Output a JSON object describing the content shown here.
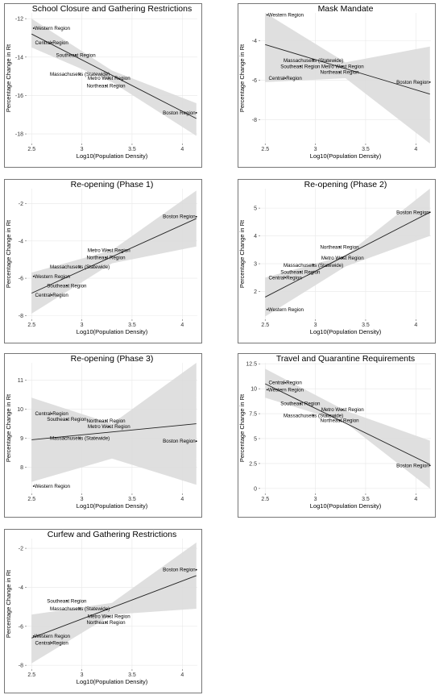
{
  "chart_data": [
    {
      "type": "scatter",
      "title": "School Closure and Gathering Restrictions",
      "xlabel": "Log10(Population Density)",
      "ylabel": "Percentage Change in Rt",
      "xlim": [
        2.45,
        4.15
      ],
      "ylim": [
        -18.5,
        -11.7
      ],
      "xticks": [
        2.5,
        3.0,
        3.5,
        4.0
      ],
      "yticks": [
        -18,
        -16,
        -14,
        -12
      ],
      "points": [
        {
          "label": "Western Region",
          "x": 2.52,
          "y": -12.5
        },
        {
          "label": "Central Region",
          "x": 2.7,
          "y": -13.25
        },
        {
          "label": "Southeast Region",
          "x": 2.94,
          "y": -13.9
        },
        {
          "label": "Massachusetts (Statewide)",
          "x": 2.98,
          "y": -14.9
        },
        {
          "label": "Metro West Region",
          "x": 3.27,
          "y": -15.1
        },
        {
          "label": "Northeast Region",
          "x": 3.24,
          "y": -15.5
        },
        {
          "label": "Boston Region",
          "x": 4.14,
          "y": -16.9
        }
      ],
      "fit": {
        "x": [
          2.5,
          4.14
        ],
        "y": [
          -12.8,
          -17.2
        ]
      },
      "band": {
        "x": [
          2.5,
          3.3,
          4.14
        ],
        "upper": [
          -12.0,
          -14.7,
          -16.4
        ],
        "lower": [
          -13.5,
          -15.3,
          -18.1
        ]
      }
    },
    {
      "type": "scatter",
      "title": "Mask Mandate",
      "xlabel": "Log10(Population Density)",
      "ylabel": "Percentage Change in Rt",
      "xlim": [
        2.45,
        4.15
      ],
      "ylim": [
        -9.2,
        -2.6
      ],
      "xticks": [
        2.5,
        3.0,
        3.5,
        4.0
      ],
      "yticks": [
        -8,
        -6,
        -4
      ],
      "points": [
        {
          "label": "Western Region",
          "x": 2.52,
          "y": -2.7
        },
        {
          "label": "Massachusetts (Statewide)",
          "x": 2.98,
          "y": -5.0
        },
        {
          "label": "Southeast Region",
          "x": 2.85,
          "y": -5.3
        },
        {
          "label": "Metro West Region",
          "x": 3.27,
          "y": -5.3
        },
        {
          "label": "Northeast Region",
          "x": 3.24,
          "y": -5.6
        },
        {
          "label": "Central Region",
          "x": 2.7,
          "y": -5.9
        },
        {
          "label": "Boston Region",
          "x": 4.14,
          "y": -6.1
        }
      ],
      "fit": {
        "x": [
          2.5,
          4.14
        ],
        "y": [
          -4.2,
          -6.7
        ]
      },
      "band": {
        "x": [
          2.5,
          3.3,
          4.14
        ],
        "upper": [
          -2.6,
          -5.1,
          -4.3
        ],
        "lower": [
          -6.1,
          -5.9,
          -9.2
        ]
      }
    },
    {
      "type": "scatter",
      "title": "Re-opening (Phase 1)",
      "xlabel": "Log10(Population Density)",
      "ylabel": "Percentage Change in Rt",
      "xlim": [
        2.45,
        4.15
      ],
      "ylim": [
        -8.2,
        -1.2
      ],
      "xticks": [
        2.5,
        3.0,
        3.5,
        4.0
      ],
      "yticks": [
        -8,
        -6,
        -4,
        -2
      ],
      "points": [
        {
          "label": "Boston Region",
          "x": 4.14,
          "y": -2.7
        },
        {
          "label": "Metro West Region",
          "x": 3.27,
          "y": -4.5
        },
        {
          "label": "Northeast Region",
          "x": 3.24,
          "y": -4.9
        },
        {
          "label": "Massachusetts (Statewide)",
          "x": 2.98,
          "y": -5.4
        },
        {
          "label": "Western Region",
          "x": 2.52,
          "y": -5.9
        },
        {
          "label": "Southeast Region",
          "x": 2.85,
          "y": -6.4
        },
        {
          "label": "Central Region",
          "x": 2.7,
          "y": -6.9
        }
      ],
      "fit": {
        "x": [
          2.5,
          4.14
        ],
        "y": [
          -6.8,
          -2.8
        ]
      },
      "band": {
        "x": [
          2.5,
          3.3,
          4.14
        ],
        "upper": [
          -5.7,
          -4.5,
          -1.3
        ],
        "lower": [
          -7.9,
          -5.2,
          -4.3
        ]
      }
    },
    {
      "type": "scatter",
      "title": "Re-opening (Phase 2)",
      "xlabel": "Log10(Population Density)",
      "ylabel": "Percentage Change in Rt",
      "xlim": [
        2.45,
        4.15
      ],
      "ylim": [
        1.0,
        5.7
      ],
      "xticks": [
        2.5,
        3.0,
        3.5,
        4.0
      ],
      "yticks": [
        2,
        3,
        4,
        5
      ],
      "points": [
        {
          "label": "Boston Region",
          "x": 4.14,
          "y": 4.85
        },
        {
          "label": "Northeast Region",
          "x": 3.24,
          "y": 3.6
        },
        {
          "label": "Metro West Region",
          "x": 3.27,
          "y": 3.2
        },
        {
          "label": "Massachusetts (Statewide)",
          "x": 2.98,
          "y": 2.95
        },
        {
          "label": "Southeast Region",
          "x": 2.85,
          "y": 2.7
        },
        {
          "label": "Central Region",
          "x": 2.7,
          "y": 2.5
        },
        {
          "label": "Western Region",
          "x": 2.52,
          "y": 1.35
        }
      ],
      "fit": {
        "x": [
          2.5,
          4.14
        ],
        "y": [
          1.8,
          4.85
        ]
      },
      "band": {
        "x": [
          2.5,
          3.3,
          4.14
        ],
        "upper": [
          2.5,
          3.3,
          5.7
        ],
        "lower": [
          1.1,
          2.9,
          4.0
        ]
      }
    },
    {
      "type": "scatter",
      "title": "Re-opening (Phase 3)",
      "xlabel": "Log10(Population Density)",
      "ylabel": "Percentage Change in Rt",
      "xlim": [
        2.45,
        4.15
      ],
      "ylim": [
        7.1,
        11.6
      ],
      "xticks": [
        2.5,
        3.0,
        3.5,
        4.0
      ],
      "yticks": [
        8,
        9,
        10,
        11
      ],
      "points": [
        {
          "label": "Central Region",
          "x": 2.7,
          "y": 9.85
        },
        {
          "label": "Southeast Region",
          "x": 2.85,
          "y": 9.65
        },
        {
          "label": "Northeast Region",
          "x": 3.24,
          "y": 9.6
        },
        {
          "label": "Metro West Region",
          "x": 3.27,
          "y": 9.4
        },
        {
          "label": "Massachusetts (Statewide)",
          "x": 2.98,
          "y": 9.0
        },
        {
          "label": "Boston Region",
          "x": 4.14,
          "y": 8.9
        },
        {
          "label": "Western Region",
          "x": 2.52,
          "y": 7.35
        }
      ],
      "fit": {
        "x": [
          2.5,
          4.14
        ],
        "y": [
          8.95,
          9.5
        ]
      },
      "band": {
        "x": [
          2.5,
          3.3,
          4.14
        ],
        "upper": [
          10.4,
          9.5,
          11.6
        ],
        "lower": [
          7.5,
          8.3,
          7.4
        ]
      }
    },
    {
      "type": "scatter",
      "title": "Travel and Quarantine Requirements",
      "xlabel": "Log10(Population Density)",
      "ylabel": "Percentage Change in Rt",
      "xlim": [
        2.45,
        4.15
      ],
      "ylim": [
        -0.5,
        12.6
      ],
      "xticks": [
        2.5,
        3.0,
        3.5,
        4.0
      ],
      "yticks": [
        0.0,
        2.5,
        5.0,
        7.5,
        10.0,
        12.5
      ],
      "points": [
        {
          "label": "Central Region",
          "x": 2.7,
          "y": 10.6
        },
        {
          "label": "Western Region",
          "x": 2.52,
          "y": 9.9
        },
        {
          "label": "Southeast Region",
          "x": 2.85,
          "y": 8.5
        },
        {
          "label": "Metro West Region",
          "x": 3.27,
          "y": 7.9
        },
        {
          "label": "Massachusetts (Statewide)",
          "x": 2.98,
          "y": 7.3
        },
        {
          "label": "Northeast Region",
          "x": 3.24,
          "y": 6.8
        },
        {
          "label": "Boston Region",
          "x": 4.14,
          "y": 2.3
        }
      ],
      "fit": {
        "x": [
          2.5,
          4.14
        ],
        "y": [
          10.5,
          2.4
        ]
      },
      "band": {
        "x": [
          2.5,
          3.3,
          4.14
        ],
        "upper": [
          12.0,
          7.8,
          4.8
        ],
        "lower": [
          9.1,
          6.6,
          0.0
        ]
      }
    },
    {
      "type": "scatter",
      "title": "Curfew and Gathering Restrictions",
      "xlabel": "Log10(Population Density)",
      "ylabel": "Percentage Change in Rt",
      "xlim": [
        2.45,
        4.15
      ],
      "ylim": [
        -8.2,
        -1.5
      ],
      "xticks": [
        2.5,
        3.0,
        3.5,
        4.0
      ],
      "yticks": [
        -8,
        -6,
        -4,
        -2
      ],
      "points": [
        {
          "label": "Boston Region",
          "x": 4.14,
          "y": -3.1
        },
        {
          "label": "Southeast Region",
          "x": 2.85,
          "y": -4.7
        },
        {
          "label": "Massachusetts (Statewide)",
          "x": 2.98,
          "y": -5.1
        },
        {
          "label": "Metro West Region",
          "x": 3.27,
          "y": -5.5
        },
        {
          "label": "Northeast Region",
          "x": 3.24,
          "y": -5.8
        },
        {
          "label": "Western Region",
          "x": 2.52,
          "y": -6.5
        },
        {
          "label": "Central Region",
          "x": 2.7,
          "y": -6.85
        }
      ],
      "fit": {
        "x": [
          2.5,
          4.14
        ],
        "y": [
          -6.6,
          -3.4
        ]
      },
      "band": {
        "x": [
          2.5,
          3.3,
          4.14
        ],
        "upper": [
          -5.4,
          -4.8,
          -1.7
        ],
        "lower": [
          -7.9,
          -5.4,
          -5.1
        ]
      }
    }
  ]
}
